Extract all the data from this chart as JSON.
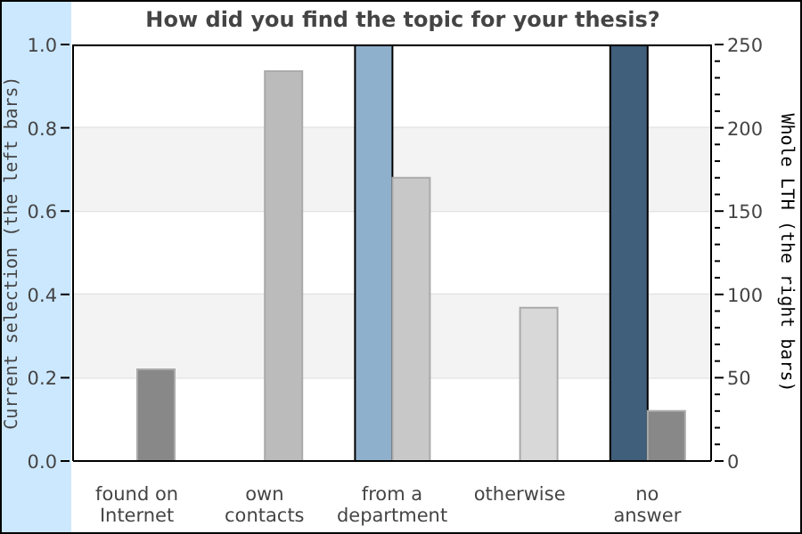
{
  "chart_data": {
    "type": "bar",
    "title": "How did you find the topic for your thesis?",
    "categories": [
      "found on Internet",
      "own contacts",
      "from a department",
      "otherwise",
      "no answer"
    ],
    "ylabel": "Current selection (the left bars)",
    "y2label": "Whole LTH (the right bars)",
    "series": [
      {
        "values": [
          0,
          0,
          1.0,
          0,
          1.0
        ],
        "colors": [
          "#8fb0cc",
          "#8fb0cc",
          "#8fb0cc",
          "#8fb0cc",
          "#3f5f7a"
        ],
        "axis": "y"
      },
      {
        "values": [
          55,
          234,
          170,
          92,
          30
        ],
        "colors": [
          "#888888",
          "#bbbbbb",
          "#c8c8c8",
          "#d8d8d8",
          "#888888"
        ],
        "axis": "y2"
      }
    ],
    "ylim": [
      0,
      1.0
    ],
    "yticks": [
      {
        "value": 0,
        "label": "0.0"
      },
      {
        "value": 0.2,
        "label": "0.2"
      },
      {
        "value": 0.4,
        "label": "0.4"
      },
      {
        "value": 0.6,
        "label": "0.6"
      },
      {
        "value": 0.8,
        "label": "0.8"
      },
      {
        "value": 1.0,
        "label": "1.0"
      }
    ],
    "y2lim": [
      0,
      250
    ],
    "y2ticks": [
      0,
      {
        "value": 10,
        "label": null
      },
      {
        "value": 20,
        "label": null
      },
      {
        "value": 30,
        "label": null
      },
      {
        "value": 40,
        "label": null
      },
      50,
      {
        "value": 60,
        "label": null
      },
      {
        "value": 70,
        "label": null
      },
      {
        "value": 80,
        "label": null
      },
      {
        "value": 90,
        "label": null
      },
      100,
      {
        "value": 110,
        "label": null
      },
      {
        "value": 120,
        "label": null
      },
      {
        "value": 130,
        "label": null
      },
      {
        "value": 140,
        "label": null
      },
      150,
      {
        "value": 160,
        "label": null
      },
      {
        "value": 170,
        "label": null
      },
      {
        "value": 180,
        "label": null
      },
      {
        "value": 190,
        "label": null
      },
      200,
      {
        "value": 210,
        "label": null
      },
      {
        "value": 220,
        "label": null
      },
      {
        "value": 230,
        "label": null
      },
      {
        "value": 240,
        "label": null
      },
      250
    ],
    "bands": [
      {
        "axis": "y",
        "from": 0.2,
        "to": 0.4,
        "color": "#f3f3f3"
      },
      {
        "axis": "y",
        "from": 0.6,
        "to": 0.8,
        "color": "#f3f3f3"
      }
    ],
    "grid": "y",
    "legend": false
  }
}
